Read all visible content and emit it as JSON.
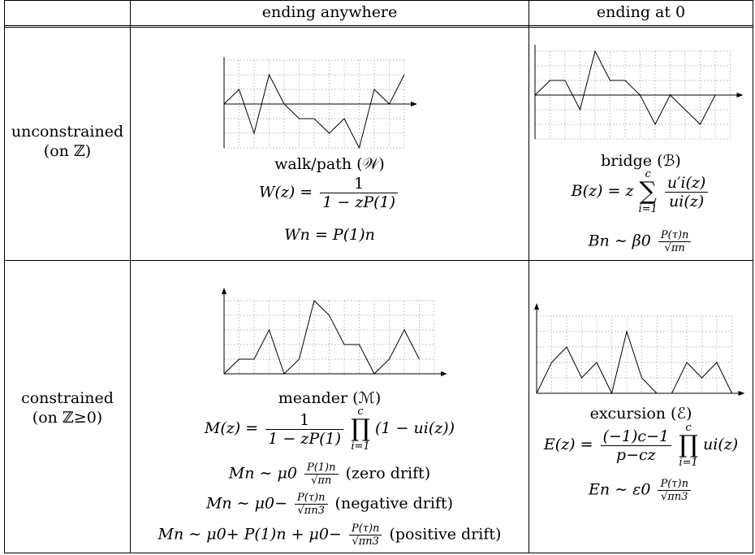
{
  "header": {
    "col_anywhere": "ending anywhere",
    "col_zero": "ending at 0"
  },
  "rows": {
    "unconstrained": {
      "line1": "unconstrained",
      "line2": "(on ℤ)"
    },
    "constrained": {
      "line1": "constrained",
      "line2": "(on ℤ≥0)"
    }
  },
  "cells": {
    "walk": {
      "caption": "walk/path (𝒲)",
      "gf_lhs": "W(z) =",
      "gf_num": "1",
      "gf_den": "1 − zP(1)",
      "asym": "Wn = P(1)n"
    },
    "bridge": {
      "caption": "bridge (ℬ)",
      "gf_lhs": "B(z) = z",
      "sum_upper": "c",
      "sum_lower": "i=1",
      "gf_num": "u′i(z)",
      "gf_den": "ui(z)",
      "asym_lhs": "Bn ∼ β0",
      "asym_num": "P(τ)n",
      "asym_den": "√πn"
    },
    "meander": {
      "caption": "meander (ℳ)",
      "gf_lhs": "M(z) =",
      "gf_num": "1",
      "gf_den": "1 − zP(1)",
      "prod_upper": "c",
      "prod_lower": "i=1",
      "gf_tail": "(1 − ui(z))",
      "asym_zero_lhs": "Mn ∼ μ0",
      "asym_zero_num": "P(1)n",
      "asym_zero_den": "√πn",
      "asym_zero_note": "(zero drift)",
      "asym_neg_lhs": "Mn ∼ μ0−",
      "asym_neg_num": "P(τ)n",
      "asym_neg_den": "√πn3",
      "asym_neg_note": "(negative drift)",
      "asym_pos_lhs": "Mn ∼ μ0+ P(1)n + μ0−",
      "asym_pos_num": "P(τ)n",
      "asym_pos_den": "√πn3",
      "asym_pos_note": "(positive drift)"
    },
    "excursion": {
      "caption": "excursion (ℰ)",
      "gf_lhs": "E(z) =",
      "gf_num": "(−1)c−1",
      "gf_den": "p−cz",
      "prod_upper": "c",
      "prod_lower": "i=1",
      "gf_tail": "ui(z)",
      "asym_lhs": "En ∼ ε0",
      "asym_num": "P(τ)n",
      "asym_den": "√πn3"
    }
  },
  "diagrams": {
    "walk": {
      "steps": [
        0,
        1,
        -2,
        2,
        0,
        -1,
        -1,
        -2,
        -1,
        -3,
        1,
        0,
        2
      ]
    },
    "bridge": {
      "steps": [
        0,
        1,
        1,
        -1,
        3,
        1,
        1,
        0,
        -2,
        0,
        -1,
        -2,
        0
      ]
    },
    "meander": {
      "steps": [
        0,
        1,
        1,
        3,
        0,
        1,
        5,
        4,
        2,
        2,
        0,
        1,
        3,
        1
      ]
    },
    "excursion": {
      "steps": [
        0,
        2,
        3,
        1,
        2,
        0,
        4,
        1,
        0,
        0,
        2,
        1,
        2,
        0
      ]
    }
  }
}
